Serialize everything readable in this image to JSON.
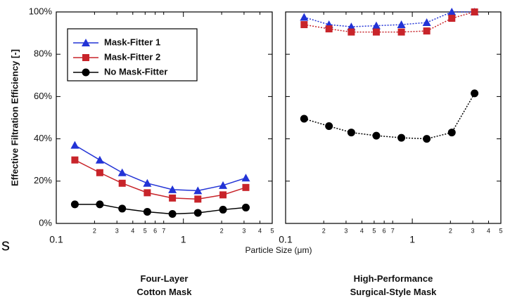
{
  "stray_text": "s",
  "chart_data": [
    {
      "type": "line",
      "title": "Four-Layer\nCotton Mask",
      "y_label": "Effective Filtration Efficiency [-]",
      "x_label": "Particle Size (μm)",
      "log_x": true,
      "line_style": "solid",
      "legend": "upper left",
      "x": [
        0.14,
        0.22,
        0.33,
        0.52,
        0.82,
        1.3,
        2.05,
        3.1
      ],
      "xlim": [
        0.1,
        5
      ],
      "xticks": [
        0.1,
        {
          "value": 0.2,
          "label": "2"
        },
        {
          "value": 0.3,
          "label": "3"
        },
        {
          "value": 0.4,
          "label": "4"
        },
        {
          "value": 0.5,
          "label": "5"
        },
        {
          "value": 0.6,
          "label": "6"
        },
        {
          "value": 0.7,
          "label": "7"
        },
        1,
        2,
        3,
        4,
        5
      ],
      "ylim": [
        0,
        100
      ],
      "yticks": [
        {
          "value": 0,
          "label": "0%"
        },
        {
          "value": 20,
          "label": "20%"
        },
        {
          "value": 40,
          "label": "40%"
        },
        {
          "value": 60,
          "label": "60%"
        },
        {
          "value": 80,
          "label": "80%"
        },
        {
          "value": 100,
          "label": "100%"
        }
      ],
      "series": [
        {
          "name": "Mask-Fitter 1",
          "color": "#2233d6",
          "marker": "triangle",
          "values": [
            37,
            30,
            24,
            19,
            16,
            15.5,
            18,
            21.5
          ]
        },
        {
          "name": "Mask-Fitter 2",
          "color": "#c8242a",
          "marker": "square",
          "values": [
            30,
            24,
            19,
            14.5,
            12,
            11.5,
            13.5,
            17
          ]
        },
        {
          "name": "No Mask-Fitter",
          "color": "#000000",
          "marker": "circle",
          "values": [
            9,
            9,
            7,
            5.5,
            4.5,
            5,
            6.5,
            7.5
          ]
        }
      ]
    },
    {
      "type": "line",
      "title": "High-Performance\nSurgical-Style Mask",
      "log_x": true,
      "line_style": "dotted",
      "x": [
        0.14,
        0.22,
        0.33,
        0.52,
        0.82,
        1.3,
        2.05,
        3.1
      ],
      "xlim": [
        0.1,
        5
      ],
      "xticks": [
        0.1,
        {
          "value": 0.2,
          "label": "2"
        },
        {
          "value": 0.3,
          "label": "3"
        },
        {
          "value": 0.4,
          "label": "4"
        },
        {
          "value": 0.5,
          "label": "5"
        },
        {
          "value": 0.6,
          "label": "6"
        },
        {
          "value": 0.7,
          "label": "7"
        },
        1,
        2,
        3,
        4,
        5
      ],
      "ylim": [
        0,
        100
      ],
      "yticks": [
        0,
        20,
        40,
        60,
        80,
        100
      ],
      "series": [
        {
          "name": "Mask-Fitter 1",
          "color": "#2233d6",
          "marker": "triangle",
          "values": [
            97.5,
            94,
            93,
            93.5,
            94,
            95,
            100,
            100
          ]
        },
        {
          "name": "Mask-Fitter 2",
          "color": "#c8242a",
          "marker": "square",
          "values": [
            94,
            92,
            90.5,
            90.5,
            90.5,
            91,
            97,
            100
          ]
        },
        {
          "name": "No Mask-Fitter",
          "color": "#000000",
          "marker": "circle",
          "values": [
            49.5,
            46,
            43,
            41.5,
            40.5,
            40,
            43,
            61.5
          ]
        }
      ]
    }
  ]
}
